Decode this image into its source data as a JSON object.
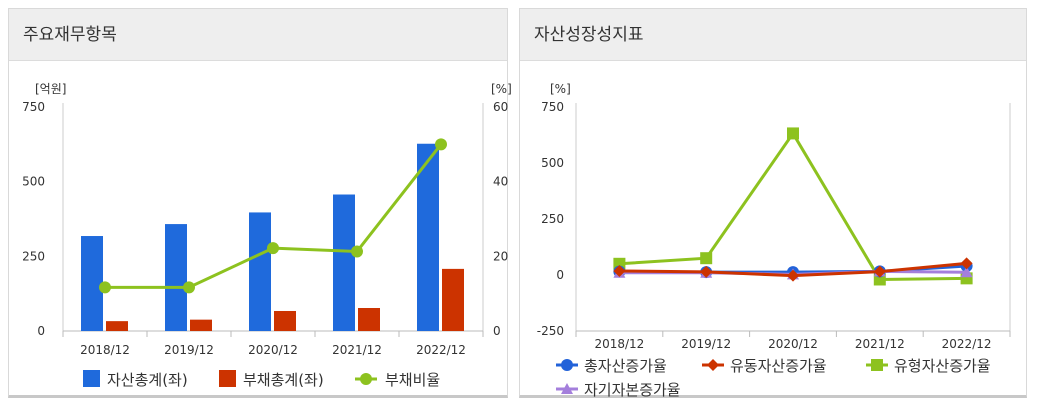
{
  "panels": [
    {
      "title": "주요재무항목",
      "chart_data": {
        "type": "bar",
        "categories": [
          "2018/12",
          "2019/12",
          "2020/12",
          "2021/12",
          "2022/12"
        ],
        "left_axis": {
          "unit": "[억원]",
          "ylim": [
            0,
            750
          ],
          "ticks": [
            "0",
            "250",
            "500",
            "750"
          ]
        },
        "right_axis": {
          "unit": "[%]",
          "ylim": [
            0,
            60
          ],
          "ticks": [
            "0",
            "20",
            "40",
            "60"
          ]
        },
        "grid": false,
        "legend": "bottom",
        "series": [
          {
            "name": "자산총계(좌)",
            "type": "bar",
            "axis": "left",
            "color": "#1f6adc",
            "values": [
              318,
              358,
              397,
              457,
              627
            ]
          },
          {
            "name": "부채총계(좌)",
            "type": "bar",
            "axis": "left",
            "color": "#cc3300",
            "values": [
              33,
              38,
              67,
              77,
              208
            ]
          },
          {
            "name": "부채비율",
            "type": "line",
            "axis": "right",
            "color": "#8dc21f",
            "values": [
              11.7,
              11.7,
              22.2,
              21.3,
              50.0
            ]
          }
        ]
      }
    },
    {
      "title": "자산성장성지표",
      "chart_data": {
        "type": "line",
        "categories": [
          "2018/12",
          "2019/12",
          "2020/12",
          "2021/12",
          "2022/12"
        ],
        "y_axis": {
          "unit": "[%]",
          "ylim": [
            -250,
            750
          ],
          "ticks": [
            "-250",
            "0",
            "250",
            "500",
            "750"
          ]
        },
        "grid": false,
        "legend": "bottom",
        "series": [
          {
            "name": "총자산증가율",
            "marker": "circle",
            "color": "#2262d9",
            "values": [
              15,
              13,
              13,
              16,
              40
            ]
          },
          {
            "name": "유동자산증가율",
            "marker": "diamond",
            "color": "#cc3300",
            "values": [
              18,
              14,
              -3,
              15,
              52
            ]
          },
          {
            "name": "유형자산증가율",
            "marker": "square",
            "color": "#8dc21f",
            "values": [
              50,
              75,
              632,
              -20,
              -15
            ]
          },
          {
            "name": "자기자본증가율",
            "marker": "triangle",
            "color": "#a47fdc",
            "values": [
              10,
              10,
              3,
              16,
              12
            ]
          }
        ]
      }
    }
  ]
}
